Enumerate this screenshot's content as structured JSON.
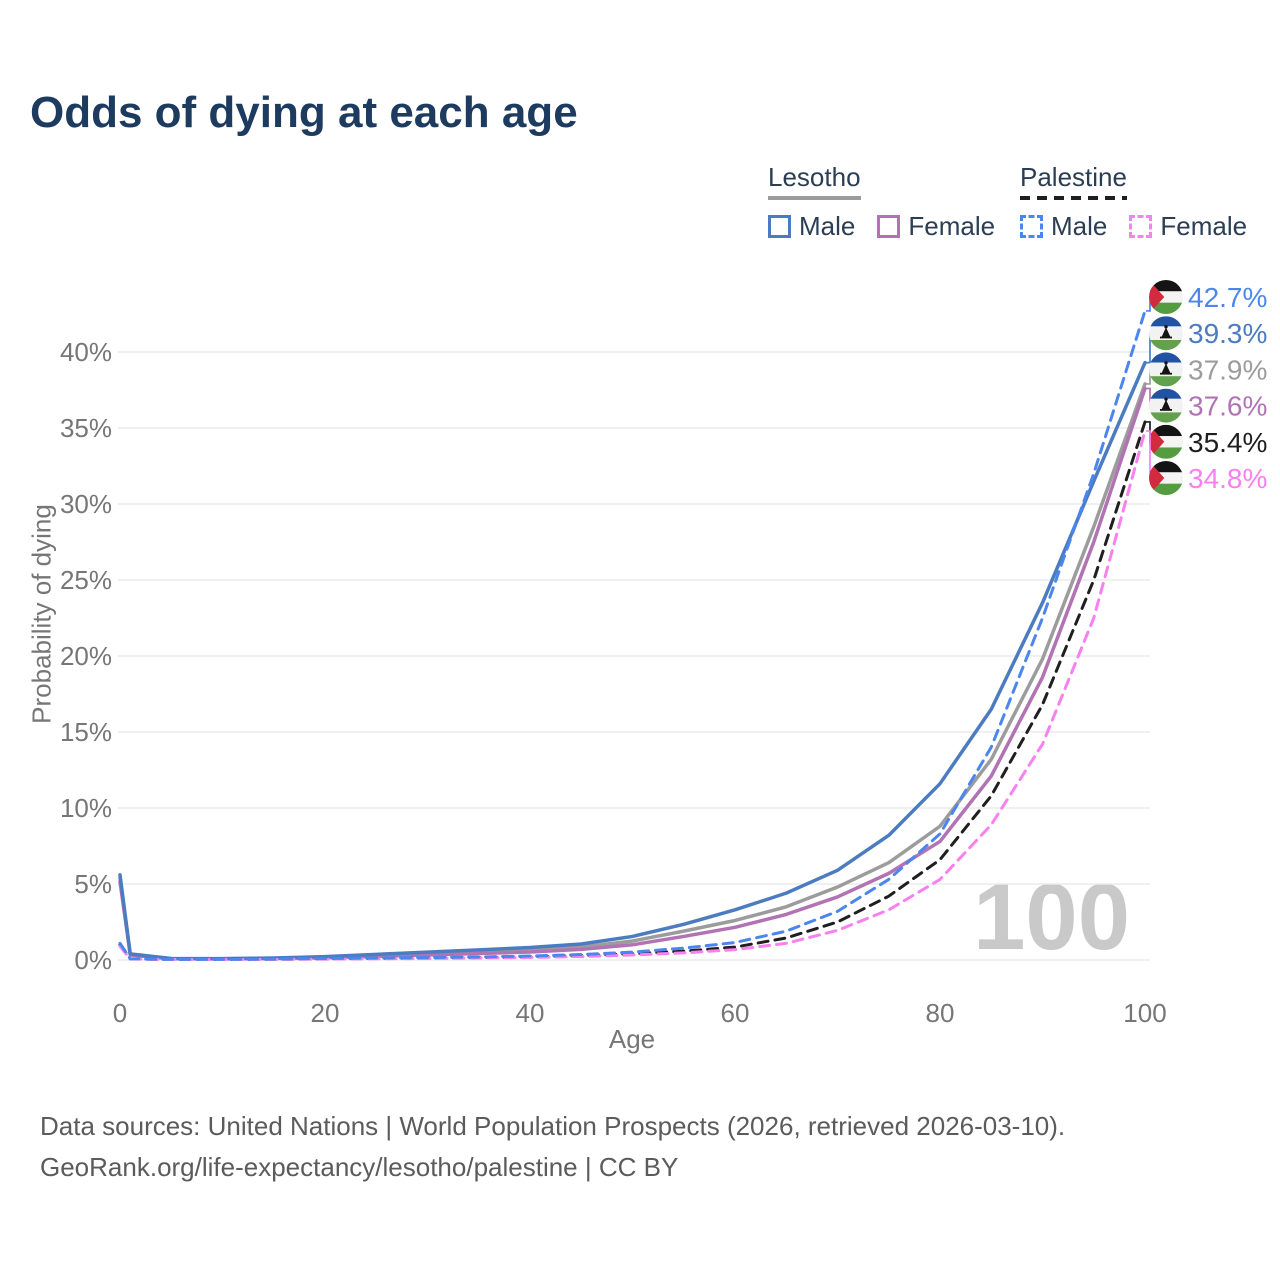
{
  "title": "Odds of dying at each age",
  "legend": {
    "groups": [
      {
        "name": "Lesotho",
        "line_style": "solid",
        "underline_color": "#9c9c9c",
        "items": [
          {
            "label": "Male",
            "color": "#4c7cc0"
          },
          {
            "label": "Female",
            "color": "#b173b3"
          }
        ]
      },
      {
        "name": "Palestine",
        "line_style": "dashed",
        "underline_color": "#1f1f1f",
        "items": [
          {
            "label": "Male",
            "color": "#4b86ef"
          },
          {
            "label": "Female",
            "color": "#f980ef"
          }
        ]
      }
    ]
  },
  "chart_data": {
    "type": "line",
    "title": "Odds of dying at each age",
    "xlabel": "Age",
    "ylabel": "Probability of dying",
    "watermark": "100",
    "xlim": [
      0,
      100
    ],
    "ylim": [
      0,
      44
    ],
    "grid": "horizontal",
    "x_ticks": [
      0,
      20,
      40,
      60,
      80,
      100
    ],
    "y_tick_values": [
      0,
      5,
      10,
      15,
      20,
      25,
      30,
      35,
      40
    ],
    "y_ticks": [
      "0%",
      "5%",
      "10%",
      "15%",
      "20%",
      "25%",
      "30%",
      "35%",
      "40%"
    ],
    "x": [
      0,
      1,
      5,
      10,
      15,
      20,
      25,
      30,
      35,
      40,
      45,
      50,
      55,
      60,
      65,
      70,
      75,
      80,
      85,
      90,
      95,
      100
    ],
    "series": [
      {
        "id": "lesotho-total",
        "name": "Lesotho",
        "flag": "lesotho",
        "color": "#9c9c9c",
        "dashed": false,
        "end_label": "37.9%",
        "values": [
          5.4,
          0.36,
          0.09,
          0.08,
          0.11,
          0.18,
          0.3,
          0.42,
          0.54,
          0.66,
          0.85,
          1.25,
          1.9,
          2.6,
          3.5,
          4.8,
          6.4,
          8.8,
          13.2,
          19.8,
          28.5,
          37.9
        ]
      },
      {
        "id": "lesotho-female",
        "name": "Lesotho Female",
        "flag": "lesotho",
        "color": "#b173b3",
        "dashed": false,
        "end_label": "37.6%",
        "values": [
          5.15,
          0.33,
          0.08,
          0.07,
          0.1,
          0.15,
          0.24,
          0.33,
          0.43,
          0.53,
          0.7,
          1.0,
          1.55,
          2.15,
          3.0,
          4.15,
          5.7,
          7.8,
          12.1,
          18.6,
          27.5,
          37.6
        ]
      },
      {
        "id": "lesotho-male",
        "name": "Lesotho Male",
        "flag": "lesotho",
        "color": "#4c7cc0",
        "dashed": false,
        "end_label": "39.3%",
        "values": [
          5.6,
          0.4,
          0.1,
          0.09,
          0.13,
          0.22,
          0.37,
          0.52,
          0.67,
          0.82,
          1.05,
          1.55,
          2.35,
          3.3,
          4.4,
          5.9,
          8.2,
          11.6,
          16.5,
          23.5,
          31.5,
          39.3
        ]
      },
      {
        "id": "palestine-total",
        "name": "Palestine",
        "flag": "palestine",
        "color": "#1f1f1f",
        "dashed": true,
        "end_label": "35.4%",
        "values": [
          1.0,
          0.075,
          0.035,
          0.035,
          0.05,
          0.08,
          0.1,
          0.13,
          0.16,
          0.21,
          0.29,
          0.41,
          0.58,
          0.85,
          1.45,
          2.5,
          4.2,
          6.6,
          10.8,
          16.8,
          25.0,
          35.4
        ]
      },
      {
        "id": "palestine-female",
        "name": "Palestine Female",
        "flag": "palestine",
        "color": "#f980ef",
        "dashed": true,
        "end_label": "34.8%",
        "values": [
          0.9,
          0.07,
          0.03,
          0.03,
          0.04,
          0.06,
          0.08,
          0.1,
          0.13,
          0.17,
          0.23,
          0.33,
          0.47,
          0.68,
          1.1,
          1.95,
          3.3,
          5.3,
          8.9,
          14.2,
          22.5,
          34.8
        ]
      },
      {
        "id": "palestine-male",
        "name": "Palestine Male",
        "flag": "palestine",
        "color": "#4b86ef",
        "dashed": true,
        "end_label": "42.7%",
        "values": [
          1.1,
          0.08,
          0.04,
          0.04,
          0.06,
          0.1,
          0.13,
          0.16,
          0.2,
          0.26,
          0.36,
          0.52,
          0.78,
          1.15,
          1.9,
          3.2,
          5.3,
          8.3,
          14.0,
          22.5,
          32.0,
          42.7
        ]
      }
    ],
    "end_labels": [
      "42.7%",
      "39.3%",
      "37.9%",
      "37.6%",
      "35.4%",
      "34.8%"
    ],
    "legend_position": "top-right"
  },
  "footer": {
    "line1": "Data sources: United Nations | World Population Prospects (2026, retrieved 2026-03-10).",
    "line2": "GeoRank.org/life-expectancy/lesotho/palestine | CC BY"
  }
}
